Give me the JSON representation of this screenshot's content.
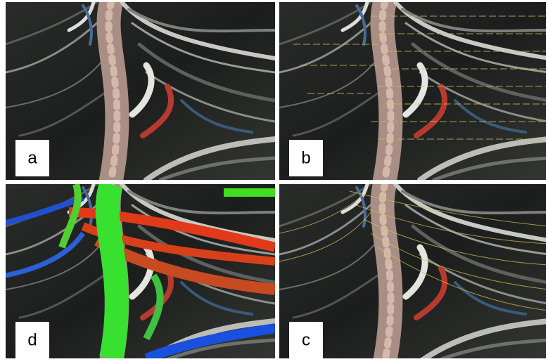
{
  "panels": [
    {
      "label": "a"
    },
    {
      "label": "b"
    },
    {
      "label": "d"
    },
    {
      "label": "c"
    }
  ]
}
